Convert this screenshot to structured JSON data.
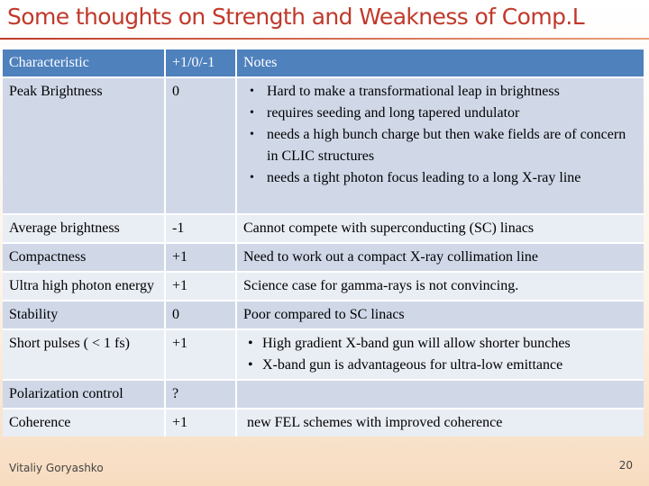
{
  "title": "Some thoughts on Strength and Weakness of Comp.L",
  "table": {
    "headers": [
      "Characteristic",
      "+1/0/-1",
      "Notes"
    ],
    "rows": [
      {
        "characteristic": "Peak Brightness",
        "score": "0",
        "notes": [
          "Hard to make a transformational leap in brightness",
          "requires seeding and long tapered undulator",
          "needs a high bunch charge but then wake fields are of concern in CLIC structures",
          "needs a tight photon focus leading to a long X-ray line"
        ]
      },
      {
        "characteristic": "Average brightness",
        "score": "-1",
        "notes": "Cannot compete with superconducting (SC) linacs"
      },
      {
        "characteristic": "Compactness",
        "score": "+1",
        "notes": "Need to work out a compact X-ray collimation line"
      },
      {
        "characteristic": "Ultra high photon energy",
        "score": "+1",
        "notes": "Science case for gamma-rays is not convincing."
      },
      {
        "characteristic": "Stability",
        "score": "0",
        "notes": "Poor compared to SC linacs"
      },
      {
        "characteristic": "Short pulses ( < 1 fs)",
        "score": "+1",
        "notes": [
          "High gradient X-band gun will allow shorter bunches",
          "X-band gun is advantageous for ultra-low emittance"
        ]
      },
      {
        "characteristic": "Polarization control",
        "score": "?",
        "notes": ""
      },
      {
        "characteristic": "Coherence",
        "score": "+1",
        "notes": " new FEL schemes with improved coherence"
      }
    ]
  },
  "footer": {
    "author": "Vitaliy Goryashko",
    "page": "20"
  }
}
